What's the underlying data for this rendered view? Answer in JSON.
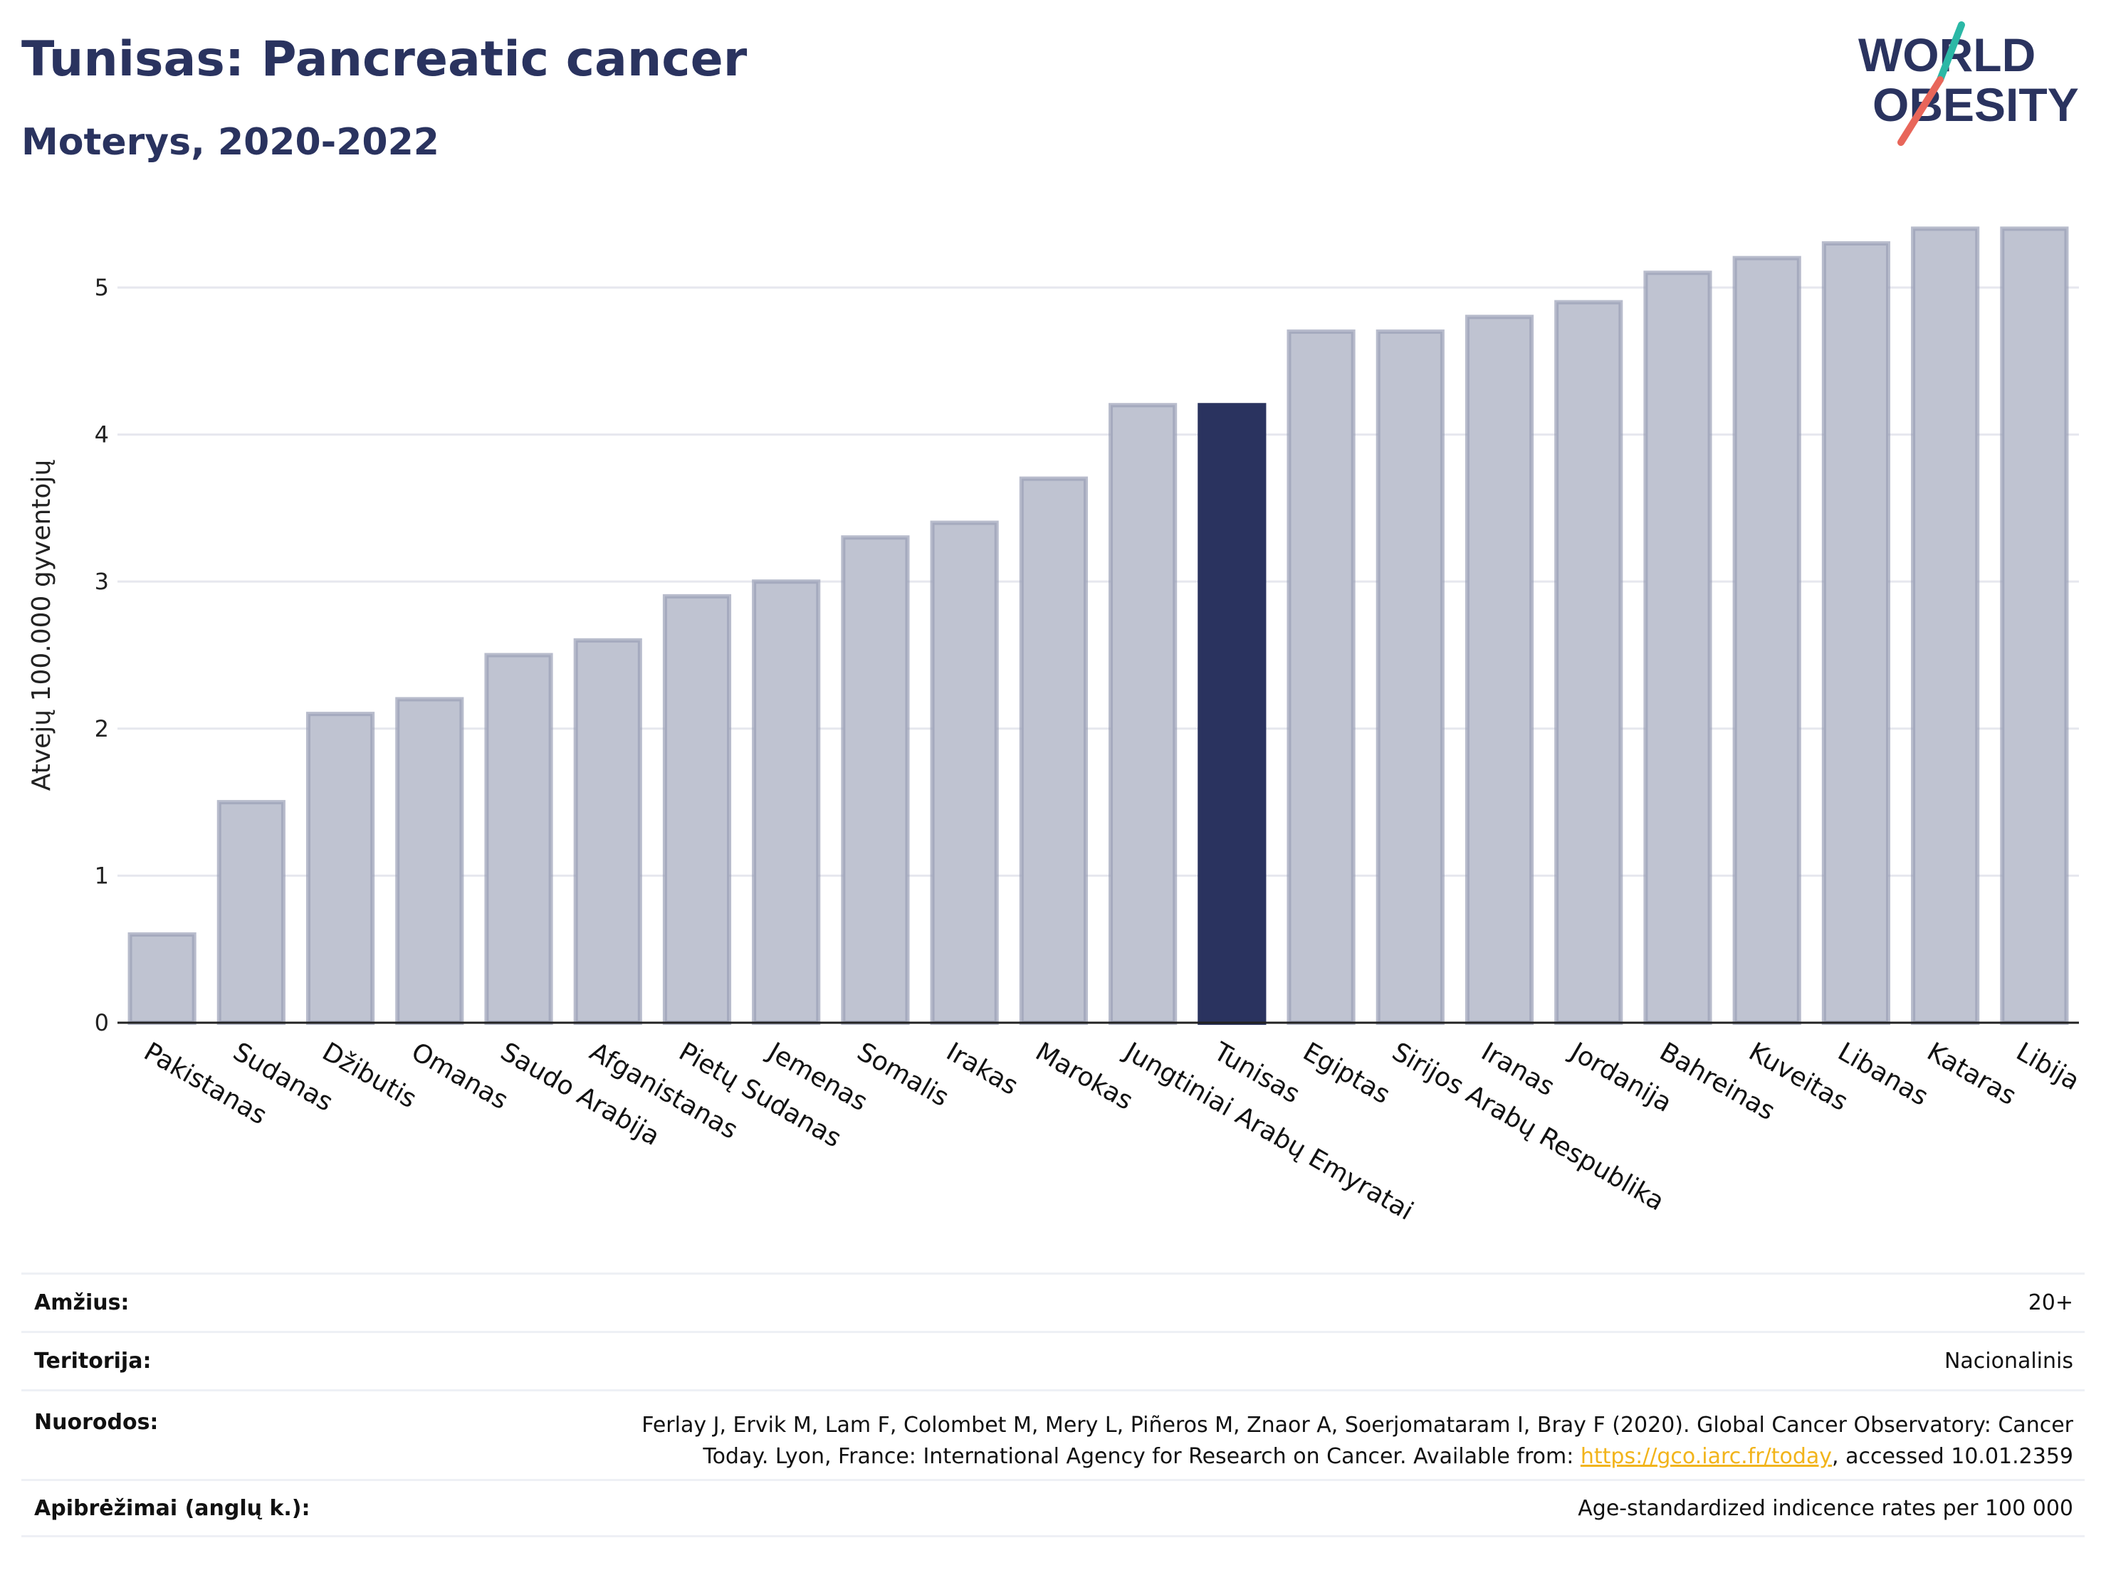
{
  "title": "Tunisas: Pancreatic cancer",
  "subtitle": "Moterys, 2020-2022",
  "logo": {
    "line1": "WORLD",
    "line2": "OBESITY",
    "text_color": "#2a335f",
    "accent_teal": "#2bb8a6",
    "accent_coral": "#e8665a"
  },
  "colors": {
    "bar": "#bfc3d1",
    "bar_edge": "#9a9fb6",
    "highlight": "#2a335f",
    "grid": "#e6e7ee",
    "axis": "#222222"
  },
  "chart_data": {
    "type": "bar",
    "ylabel": "Atvejų 100.000 gyventojų",
    "xlabel": "",
    "ylim": [
      0,
      5.6
    ],
    "yticks": [
      0,
      1,
      2,
      3,
      4,
      5
    ],
    "grid": true,
    "highlight": "Tunisas",
    "categories": [
      "Pakistanas",
      "Sudanas",
      "Džibutis",
      "Omanas",
      "Saudo Arabija",
      "Afganistanas",
      "Pietų Sudanas",
      "Jemenas",
      "Somalis",
      "Irakas",
      "Marokas",
      "Jungtiniai Arabų Emyratai",
      "Tunisas",
      "Egiptas",
      "Sirijos Arabų Respublika",
      "Iranas",
      "Jordanija",
      "Bahreinas",
      "Kuveitas",
      "Libanas",
      "Kataras",
      "Libija"
    ],
    "values": [
      0.6,
      1.5,
      2.1,
      2.2,
      2.5,
      2.6,
      2.9,
      3.0,
      3.3,
      3.4,
      3.7,
      4.2,
      4.2,
      4.7,
      4.7,
      4.8,
      4.9,
      5.1,
      5.2,
      5.3,
      5.4,
      5.4
    ]
  },
  "meta": {
    "age_label": "Amžius:",
    "age_value": "20+",
    "territory_label": "Teritorija:",
    "territory_value": "Nacionalinis",
    "refs_label": "Nuorodos:",
    "refs_text_before": "Ferlay J, Ervik M, Lam F, Colombet M, Mery L, Piñeros M, Znaor A, Soerjomataram I, Bray F (2020). Global Cancer Observatory: Cancer Today. Lyon, France: International Agency for Research on Cancer. Available from: ",
    "refs_link": "https://gco.iarc.fr/today",
    "refs_text_after": ", accessed 10.01.2359",
    "definitions_label": "Apibrėžimai (anglų k.):",
    "definitions_value": "Age-standardized indicence rates per 100 000"
  }
}
